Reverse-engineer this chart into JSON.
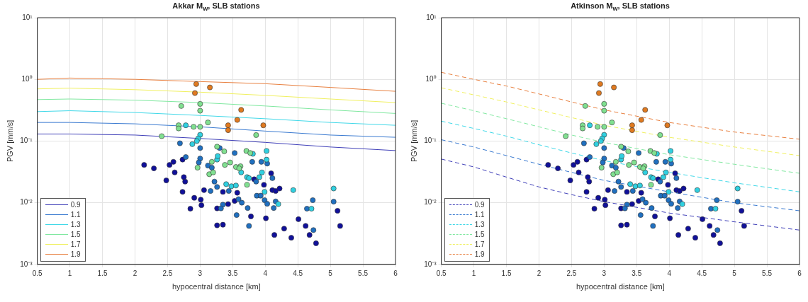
{
  "chart_data": [
    {
      "type": "line",
      "title": "Akkar M$_{w}$, SLB stations",
      "xlabel": "hypocentral distance [km]",
      "ylabel": "PGV [mm/s]",
      "x": [
        0.5,
        1,
        2,
        3,
        4,
        5,
        6
      ],
      "xlim": [
        0.5,
        6
      ],
      "xticks": [
        0.5,
        1,
        1.5,
        2,
        2.5,
        3,
        3.5,
        4,
        4.5,
        5,
        5.5,
        6
      ],
      "ylim": [
        0.001,
        10
      ],
      "yticks": [
        {
          "value": 0.001,
          "label": "10⁻³"
        },
        {
          "value": 0.01,
          "label": "10⁻²"
        },
        {
          "value": 0.1,
          "label": "10⁻¹"
        },
        {
          "value": 1,
          "label": "10⁰"
        },
        {
          "value": 10,
          "label": "10¹"
        }
      ],
      "log": "y",
      "grid": true,
      "legend": "bottom left",
      "marker": "none",
      "line_style": "solid",
      "series": [
        {
          "name": "0.9",
          "color": "#4040b8",
          "values": [
            0.13,
            0.13,
            0.125,
            0.11,
            0.095,
            0.08,
            0.07
          ]
        },
        {
          "name": "1.1",
          "color": "#3a7ad0",
          "values": [
            0.2,
            0.2,
            0.19,
            0.17,
            0.145,
            0.125,
            0.115
          ]
        },
        {
          "name": "1.3",
          "color": "#40d8e8",
          "values": [
            0.3,
            0.31,
            0.29,
            0.26,
            0.23,
            0.2,
            0.18
          ]
        },
        {
          "name": "1.5",
          "color": "#80e8a0",
          "values": [
            0.47,
            0.48,
            0.46,
            0.42,
            0.37,
            0.32,
            0.28
          ]
        },
        {
          "name": "1.7",
          "color": "#f0f060",
          "values": [
            0.7,
            0.72,
            0.68,
            0.62,
            0.55,
            0.48,
            0.42
          ]
        },
        {
          "name": "1.9",
          "color": "#e88040",
          "values": [
            1.0,
            1.05,
            1.0,
            0.92,
            0.85,
            0.74,
            0.64
          ]
        },
        {
          "type": "scatter",
          "marker": "circle",
          "color": "#e07a20",
          "x": [
            2.94,
            3.15,
            2.92,
            3.63,
            3.57,
            3.43,
            3.43,
            3.97
          ],
          "values": [
            0.84,
            0.74,
            0.6,
            0.32,
            0.22,
            0.18,
            0.15,
            0.18
          ]
        },
        {
          "type": "scatter",
          "marker": "circle",
          "color": "#80e090",
          "x": [
            2.71,
            3.0,
            3.0,
            3.12,
            2.67,
            2.67,
            2.9,
            3.0,
            2.41,
            3.86,
            3.26,
            3.37,
            3.71,
            3.77,
            3.18,
            2.96,
            3.38,
            3.46,
            3.55,
            3.62,
            3.6,
            3.72,
            3.14,
            3.2
          ],
          "values": [
            0.37,
            0.4,
            0.31,
            0.2,
            0.18,
            0.16,
            0.17,
            0.17,
            0.12,
            0.125,
            0.081,
            0.068,
            0.069,
            0.064,
            0.046,
            0.037,
            0.041,
            0.045,
            0.038,
            0.039,
            0.036,
            0.0195,
            0.029,
            0.031
          ]
        },
        {
          "type": "scatter",
          "marker": "circle",
          "color": "#30d0e0",
          "x": [
            2.78,
            3.0,
            2.97,
            2.95,
            2.88,
            3.81,
            4.02,
            4.02,
            3.26,
            3.27,
            3.4,
            3.48,
            3.55,
            3.63,
            3.72,
            3.75,
            3.91,
            3.95,
            3.99,
            4.2,
            4.43,
            4.71,
            5.05
          ],
          "values": [
            0.18,
            0.126,
            0.11,
            0.1,
            0.089,
            0.062,
            0.069,
            0.05,
            0.05,
            0.057,
            0.02,
            0.0185,
            0.019,
            0.031,
            0.026,
            0.025,
            0.026,
            0.031,
            0.015,
            0.0095,
            0.016,
            0.008,
            0.017
          ]
        },
        {
          "type": "scatter",
          "marker": "circle",
          "color": "#2070c0",
          "x": [
            2.69,
            3.0,
            3.3,
            3.53,
            3.8,
            3.94,
            4.03,
            3.0,
            2.98,
            2.78,
            3.16,
            3.22,
            3.26,
            3.44,
            3.86,
            3.12,
            3.18,
            4.11,
            3.87,
            3.93,
            3.99,
            4.03,
            4.16,
            4.13,
            4.73,
            4.64,
            5.05,
            4.74,
            3.75,
            3.73,
            3.56,
            3.64,
            3.59,
            3.35,
            3.32
          ],
          "values": [
            0.092,
            0.077,
            0.077,
            0.064,
            0.046,
            0.046,
            0.043,
            0.052,
            0.045,
            0.055,
            0.0155,
            0.022,
            0.018,
            0.0155,
            0.022,
            0.04,
            0.037,
            0.025,
            0.013,
            0.013,
            0.011,
            0.0096,
            0.0105,
            0.0082,
            0.011,
            0.008,
            0.0104,
            0.0036,
            0.0042,
            0.0082,
            0.0063,
            0.01,
            0.0114,
            0.0093,
            0.0081
          ]
        },
        {
          "type": "scatter",
          "marker": "circle",
          "color": "#10109a",
          "x": [
            2.73,
            2.59,
            2.53,
            2.14,
            2.29,
            2.61,
            2.48,
            2.75,
            2.77,
            2.73,
            3.06,
            3.35,
            3.57,
            3.83,
            3.98,
            4.09,
            4.11,
            4.16,
            4.22,
            5.11,
            5.15,
            4.51,
            4.62,
            4.68,
            4.78,
            4.4,
            4.29,
            4.14,
            4.01,
            3.78,
            3.53,
            3.43,
            3.26,
            3.26,
            3.35,
            3.01,
            3.02,
            2.91,
            2.85
          ],
          "values": [
            0.05,
            0.046,
            0.041,
            0.041,
            0.036,
            0.031,
            0.023,
            0.026,
            0.022,
            0.015,
            0.016,
            0.015,
            0.0145,
            0.024,
            0.0195,
            0.03,
            0.016,
            0.0155,
            0.017,
            0.0074,
            0.0042,
            0.0054,
            0.0042,
            0.003,
            0.0022,
            0.0027,
            0.0038,
            0.003,
            0.0056,
            0.006,
            0.0107,
            0.0095,
            0.0081,
            0.0043,
            0.0044,
            0.0112,
            0.0091,
            0.012,
            0.008
          ]
        }
      ]
    },
    {
      "type": "line",
      "title": "Atkinson M$_{w}$, SLB stations",
      "xlabel": "hypocentral distance [km]",
      "ylabel": "PGV [mm/s]",
      "x": [
        0.5,
        1,
        1.5,
        2,
        2.5,
        3,
        4,
        5,
        6
      ],
      "xlim": [
        0.5,
        6
      ],
      "xticks": [
        0.5,
        1,
        1.5,
        2,
        2.5,
        3,
        3.5,
        4,
        4.5,
        5,
        5.5,
        6
      ],
      "ylim": [
        0.001,
        10
      ],
      "yticks": [
        {
          "value": 0.001,
          "label": "10⁻³"
        },
        {
          "value": 0.01,
          "label": "10⁻²"
        },
        {
          "value": 0.1,
          "label": "10⁻¹"
        },
        {
          "value": 1,
          "label": "10⁰"
        },
        {
          "value": 10,
          "label": "10¹"
        }
      ],
      "log": "y",
      "grid": true,
      "legend": "bottom left",
      "marker": "none",
      "line_style": "dashed",
      "series": [
        {
          "name": "0.9",
          "color": "#4040b8",
          "values": [
            0.051,
            0.038,
            0.026,
            0.018,
            0.0135,
            0.0104,
            0.0068,
            0.0049,
            0.0036
          ]
        },
        {
          "name": "1.1",
          "color": "#3a7ad0",
          "values": [
            0.105,
            0.08,
            0.058,
            0.042,
            0.031,
            0.023,
            0.015,
            0.01,
            0.0074
          ]
        },
        {
          "name": "1.3",
          "color": "#40d8e8",
          "values": [
            0.21,
            0.16,
            0.12,
            0.087,
            0.064,
            0.048,
            0.031,
            0.021,
            0.015
          ]
        },
        {
          "name": "1.5",
          "color": "#80e8a0",
          "values": [
            0.41,
            0.31,
            0.23,
            0.17,
            0.125,
            0.095,
            0.06,
            0.042,
            0.03
          ]
        },
        {
          "name": "1.7",
          "color": "#f0f060",
          "values": [
            0.73,
            0.56,
            0.43,
            0.32,
            0.24,
            0.18,
            0.115,
            0.08,
            0.058
          ]
        },
        {
          "name": "1.9",
          "color": "#e88040",
          "values": [
            1.3,
            1.0,
            0.78,
            0.58,
            0.43,
            0.32,
            0.2,
            0.14,
            0.107
          ]
        },
        {
          "type": "scatter",
          "marker": "circle",
          "color": "#e07a20",
          "x": [
            2.94,
            3.15,
            2.92,
            3.63,
            3.57,
            3.43,
            3.43,
            3.97
          ],
          "values": [
            0.84,
            0.74,
            0.6,
            0.32,
            0.22,
            0.18,
            0.15,
            0.18
          ]
        },
        {
          "type": "scatter",
          "marker": "circle",
          "color": "#80e090",
          "x": [
            2.71,
            3.0,
            3.0,
            3.12,
            2.67,
            2.67,
            2.9,
            3.0,
            2.41,
            3.86,
            3.26,
            3.37,
            3.71,
            3.77,
            3.18,
            2.96,
            3.38,
            3.46,
            3.55,
            3.62,
            3.6,
            3.72,
            3.14,
            3.2
          ],
          "values": [
            0.37,
            0.4,
            0.31,
            0.2,
            0.18,
            0.16,
            0.17,
            0.17,
            0.12,
            0.125,
            0.081,
            0.068,
            0.069,
            0.064,
            0.046,
            0.037,
            0.041,
            0.045,
            0.038,
            0.039,
            0.036,
            0.0195,
            0.029,
            0.031
          ]
        },
        {
          "type": "scatter",
          "marker": "circle",
          "color": "#30d0e0",
          "x": [
            2.78,
            3.0,
            2.97,
            2.95,
            2.88,
            3.81,
            4.02,
            4.02,
            3.26,
            3.27,
            3.4,
            3.48,
            3.55,
            3.63,
            3.72,
            3.75,
            3.91,
            3.95,
            3.99,
            4.2,
            4.43,
            4.71,
            5.05
          ],
          "values": [
            0.18,
            0.126,
            0.11,
            0.1,
            0.089,
            0.062,
            0.069,
            0.05,
            0.05,
            0.057,
            0.02,
            0.0185,
            0.019,
            0.031,
            0.026,
            0.025,
            0.026,
            0.031,
            0.015,
            0.0095,
            0.016,
            0.008,
            0.017
          ]
        },
        {
          "type": "scatter",
          "marker": "circle",
          "color": "#2070c0",
          "x": [
            2.69,
            3.0,
            3.3,
            3.53,
            3.8,
            3.94,
            4.03,
            3.0,
            2.98,
            2.78,
            3.16,
            3.22,
            3.26,
            3.44,
            3.86,
            3.12,
            3.18,
            4.11,
            3.87,
            3.93,
            3.99,
            4.03,
            4.16,
            4.13,
            4.73,
            4.64,
            5.05,
            4.74,
            3.75,
            3.73,
            3.56,
            3.64,
            3.59,
            3.35,
            3.32
          ],
          "values": [
            0.092,
            0.077,
            0.077,
            0.064,
            0.046,
            0.046,
            0.043,
            0.052,
            0.045,
            0.055,
            0.0155,
            0.022,
            0.018,
            0.0155,
            0.022,
            0.04,
            0.037,
            0.025,
            0.013,
            0.013,
            0.011,
            0.0096,
            0.0105,
            0.0082,
            0.011,
            0.008,
            0.0104,
            0.0036,
            0.0042,
            0.0082,
            0.0063,
            0.01,
            0.0114,
            0.0093,
            0.0081
          ]
        },
        {
          "type": "scatter",
          "marker": "circle",
          "color": "#10109a",
          "x": [
            2.73,
            2.59,
            2.53,
            2.14,
            2.29,
            2.61,
            2.48,
            2.75,
            2.77,
            2.73,
            3.06,
            3.35,
            3.57,
            3.83,
            3.98,
            4.09,
            4.11,
            4.16,
            4.22,
            5.11,
            5.15,
            4.51,
            4.62,
            4.68,
            4.78,
            4.4,
            4.29,
            4.14,
            4.01,
            3.78,
            3.53,
            3.43,
            3.26,
            3.26,
            3.35,
            3.01,
            3.02,
            2.91,
            2.85
          ],
          "values": [
            0.05,
            0.046,
            0.041,
            0.041,
            0.036,
            0.031,
            0.023,
            0.026,
            0.022,
            0.015,
            0.016,
            0.015,
            0.0145,
            0.024,
            0.0195,
            0.03,
            0.016,
            0.0155,
            0.017,
            0.0074,
            0.0042,
            0.0054,
            0.0042,
            0.003,
            0.0022,
            0.0027,
            0.0038,
            0.003,
            0.0056,
            0.006,
            0.0107,
            0.0095,
            0.0081,
            0.0043,
            0.0044,
            0.0112,
            0.0091,
            0.012,
            0.008
          ]
        }
      ]
    }
  ]
}
